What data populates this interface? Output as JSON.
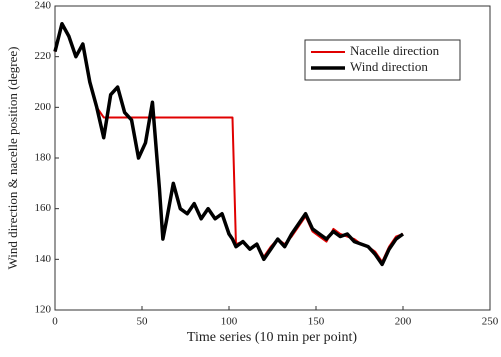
{
  "chart_data": {
    "type": "line",
    "xlabel": "Time series (10 min per point)",
    "ylabel": "Wind direction & nacelle position (degree)",
    "x": [
      0,
      4,
      8,
      12,
      16,
      20,
      24,
      28,
      32,
      36,
      40,
      44,
      48,
      52,
      56,
      60,
      62,
      64,
      68,
      72,
      76,
      80,
      84,
      88,
      92,
      96,
      100,
      102,
      104,
      108,
      112,
      116,
      120,
      124,
      128,
      132,
      136,
      140,
      144,
      148,
      152,
      156,
      160,
      164,
      168,
      172,
      176,
      180,
      184,
      188,
      192,
      196,
      200
    ],
    "series": [
      {
        "name": "Nacelle direction",
        "color": "#e00000",
        "line_width": 2,
        "values": [
          222,
          233,
          228,
          220,
          225,
          210,
          200,
          196,
          196,
          196,
          196,
          196,
          196,
          196,
          196,
          196,
          196,
          196,
          196,
          196,
          196,
          196,
          196,
          196,
          196,
          196,
          196,
          196,
          146,
          147,
          144,
          146,
          141,
          145,
          148,
          146,
          149,
          153,
          157,
          151,
          149,
          147,
          152,
          150,
          149,
          148,
          146,
          145,
          143,
          139,
          145,
          149,
          150
        ]
      },
      {
        "name": "Wind direction",
        "color": "#000000",
        "line_width": 3.5,
        "values": [
          222,
          233,
          228,
          220,
          225,
          210,
          200,
          188,
          205,
          208,
          198,
          195,
          180,
          186,
          202,
          168,
          148,
          155,
          170,
          160,
          158,
          162,
          156,
          160,
          156,
          158,
          150,
          148,
          145,
          147,
          144,
          146,
          140,
          144,
          148,
          145,
          150,
          154,
          158,
          152,
          150,
          148,
          151,
          149,
          150,
          147,
          146,
          145,
          142,
          138,
          144,
          148,
          150
        ]
      }
    ],
    "xlim": [
      0,
      250
    ],
    "xticks": [
      0,
      50,
      100,
      150,
      200,
      250
    ],
    "ylim": [
      120,
      240
    ],
    "yticks": [
      120,
      140,
      160,
      180,
      200,
      220,
      240
    ],
    "legend": "upper right"
  }
}
